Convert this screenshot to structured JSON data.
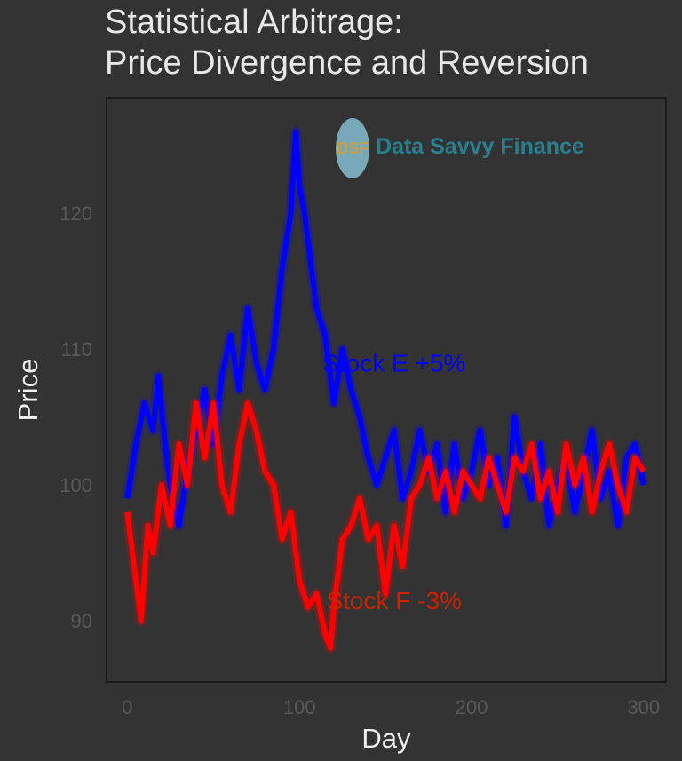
{
  "title_line1": "Statistical Arbitrage:",
  "title_line2": "Price Divergence and Reversion",
  "logo": {
    "badge": "DSF",
    "text": "Data Savvy Finance"
  },
  "colors": {
    "background": "#333333",
    "stock_e": "#0000ff",
    "stock_f": "#ff0000",
    "logo_text": "#2a7f8f"
  },
  "chart_data": {
    "type": "line",
    "xlabel": "Day",
    "ylabel": "Price",
    "xlim": [
      -12,
      313
    ],
    "ylim": [
      85.5,
      128.5
    ],
    "x_ticks": [
      0,
      100,
      200,
      300
    ],
    "y_ticks": [
      90,
      100,
      110,
      120
    ],
    "grid": false,
    "series": [
      {
        "name": "Stock E +5%",
        "color": "#0000ff",
        "x": [
          0,
          5,
          10,
          15,
          18,
          22,
          25,
          30,
          35,
          40,
          45,
          50,
          55,
          60,
          65,
          70,
          75,
          80,
          85,
          90,
          95,
          98,
          100,
          103,
          105,
          108,
          110,
          115,
          120,
          125,
          130,
          135,
          140,
          145,
          150,
          155,
          160,
          165,
          170,
          175,
          180,
          185,
          190,
          195,
          200,
          205,
          210,
          215,
          220,
          225,
          230,
          235,
          240,
          245,
          250,
          255,
          260,
          265,
          270,
          275,
          280,
          285,
          290,
          295,
          300
        ],
        "values": [
          99,
          103,
          106,
          104,
          108,
          103,
          100,
          97,
          101,
          104,
          107,
          103,
          108,
          111,
          107,
          113,
          109,
          107,
          110,
          116,
          120,
          126,
          122,
          120,
          118,
          115,
          113,
          111,
          106,
          110,
          107,
          105,
          102,
          100,
          102,
          104,
          99,
          101,
          104,
          101,
          103,
          98,
          103,
          99,
          101,
          104,
          100,
          102,
          97,
          105,
          101,
          99,
          103,
          97,
          100,
          102,
          98,
          101,
          104,
          99,
          101,
          97,
          102,
          103,
          100
        ]
      },
      {
        "name": "Stock F -3%",
        "color": "#ff0000",
        "x": [
          0,
          5,
          8,
          12,
          15,
          20,
          25,
          30,
          35,
          40,
          45,
          50,
          55,
          60,
          65,
          70,
          75,
          80,
          85,
          90,
          95,
          100,
          105,
          110,
          115,
          118,
          120,
          125,
          130,
          135,
          140,
          145,
          150,
          155,
          160,
          165,
          170,
          175,
          180,
          185,
          190,
          195,
          200,
          205,
          210,
          215,
          220,
          225,
          230,
          235,
          240,
          245,
          250,
          255,
          260,
          265,
          270,
          275,
          280,
          285,
          290,
          295,
          300
        ],
        "values": [
          98,
          93,
          90,
          97,
          95,
          100,
          97,
          103,
          100,
          106,
          102,
          106,
          100,
          98,
          103,
          106,
          104,
          101,
          100,
          96,
          98,
          93,
          91,
          92,
          89,
          88,
          91,
          96,
          97,
          99,
          96,
          97,
          92,
          97,
          94,
          99,
          100,
          102,
          99,
          101,
          98,
          101,
          100,
          99,
          102,
          100,
          98,
          102,
          101,
          103,
          99,
          101,
          98,
          103,
          100,
          102,
          98,
          101,
          103,
          100,
          98,
          102,
          101
        ]
      }
    ],
    "annotations": [
      {
        "text": "Stock E +5%",
        "x": 155,
        "y": 109,
        "color": "#0000ff"
      },
      {
        "text": "Stock F -3%",
        "x": 155,
        "y": 91.5,
        "color": "#cc2200"
      }
    ]
  }
}
